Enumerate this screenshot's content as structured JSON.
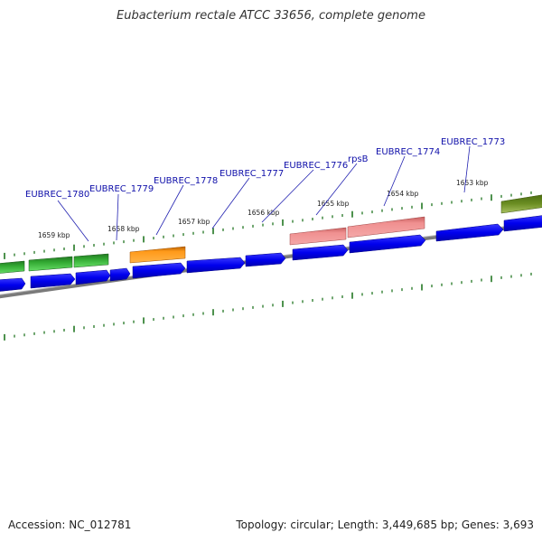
{
  "title": "Eubacterium rectale ATCC 33656, complete genome",
  "footer": {
    "accession": "Accession: NC_012781",
    "topology": "Topology: circular; Length: 3,449,685 bp; Genes: 3,693"
  },
  "colors": {
    "cds": "#0000ee",
    "rna_pink": "#e87878",
    "orange": "#ff8c00",
    "green": "#33aa33",
    "olive": "#6b8e23",
    "backbone": "#888888",
    "ticks": "#227722",
    "label": "#1010aa"
  },
  "gene_labels": [
    "EUBREC_1780",
    "EUBREC_1779",
    "EUBREC_1778",
    "EUBREC_1777",
    "EUBREC_1776",
    "rpsB",
    "EUBREC_1774",
    "EUBREC_1773"
  ],
  "kbp_labels": [
    "1659 kbp",
    "1658 kbp",
    "1657 kbp",
    "1656 kbp",
    "1655 kbp",
    "1654 kbp",
    "1653 kbp"
  ]
}
